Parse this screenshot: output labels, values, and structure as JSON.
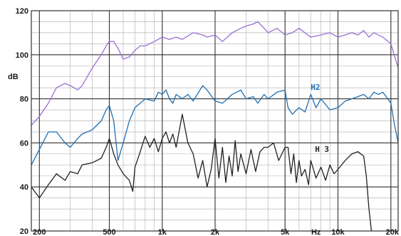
{
  "chart_data": {
    "type": "line",
    "ylabel": "dB",
    "x_scale": "log",
    "xlim": [
      180,
      22000
    ],
    "ylim": [
      20,
      120
    ],
    "y_ticks": [
      20,
      40,
      60,
      80,
      100,
      120
    ],
    "x_ticks": [
      {
        "value": 200,
        "label": "200"
      },
      {
        "value": 500,
        "label": "500"
      },
      {
        "value": 1000,
        "label": "1k"
      },
      {
        "value": 2000,
        "label": "2k"
      },
      {
        "value": 5000,
        "label": "5k"
      },
      {
        "value": 10000,
        "label": "10k"
      },
      {
        "value": 20000,
        "label": "20k"
      }
    ],
    "x_unit_label": {
      "value": 7500,
      "label": "Hz"
    },
    "grid": true,
    "series": [
      {
        "name": "",
        "color": "#9a6fd6",
        "x": [
          180,
          200,
          225,
          250,
          280,
          300,
          330,
          350,
          400,
          450,
          480,
          500,
          530,
          560,
          600,
          650,
          700,
          750,
          800,
          900,
          1000,
          1100,
          1200,
          1300,
          1500,
          1700,
          1800,
          2000,
          2200,
          2500,
          2800,
          3000,
          3300,
          3500,
          3800,
          4000,
          4500,
          5000,
          5500,
          6000,
          7000,
          8000,
          9000,
          10000,
          11000,
          12000,
          13000,
          14000,
          15000,
          16000,
          18000,
          20000,
          22000
        ],
        "y": [
          68,
          72,
          78,
          85,
          87,
          86,
          84,
          86,
          94,
          100,
          104,
          106,
          106,
          103,
          98,
          99,
          102,
          104,
          104,
          106,
          108,
          107,
          108,
          107,
          110,
          109,
          108,
          109,
          106,
          110,
          112,
          113,
          114,
          115,
          112,
          110,
          112,
          109,
          110,
          112,
          108,
          109,
          110,
          108,
          109,
          110,
          109,
          111,
          108,
          110,
          108,
          105,
          94
        ]
      },
      {
        "name": "H2",
        "color": "#1f6fb2",
        "x": [
          180,
          200,
          225,
          250,
          280,
          300,
          330,
          350,
          400,
          450,
          480,
          500,
          530,
          560,
          600,
          650,
          700,
          750,
          800,
          900,
          950,
          1000,
          1050,
          1100,
          1150,
          1200,
          1300,
          1400,
          1500,
          1700,
          1800,
          2000,
          2200,
          2500,
          2800,
          3000,
          3300,
          3500,
          3800,
          4000,
          4500,
          5000,
          5200,
          5500,
          6000,
          6500,
          7000,
          7500,
          8000,
          9000,
          10000,
          11000,
          12000,
          13000,
          14000,
          15000,
          16000,
          17000,
          18000,
          20000,
          21000,
          22000
        ],
        "y": [
          50,
          57,
          65,
          65,
          60,
          58,
          62,
          64,
          66,
          70,
          75,
          77,
          70,
          52,
          60,
          70,
          76,
          78,
          80,
          79,
          83,
          82,
          84,
          80,
          78,
          82,
          80,
          82,
          79,
          86,
          84,
          79,
          78,
          82,
          84,
          80,
          81,
          78,
          82,
          80,
          83,
          84,
          76,
          73,
          76,
          74,
          82,
          76,
          80,
          75,
          76,
          79,
          80,
          81,
          82,
          80,
          83,
          82,
          83,
          78,
          68,
          60
        ]
      },
      {
        "name": "H3",
        "color": "#222222",
        "x": [
          180,
          200,
          225,
          250,
          280,
          300,
          330,
          350,
          400,
          450,
          480,
          500,
          530,
          560,
          600,
          650,
          680,
          700,
          750,
          800,
          850,
          900,
          950,
          1000,
          1050,
          1100,
          1150,
          1200,
          1300,
          1400,
          1500,
          1600,
          1700,
          1800,
          1900,
          2000,
          2100,
          2200,
          2300,
          2400,
          2500,
          2600,
          2700,
          2800,
          3000,
          3200,
          3400,
          3600,
          3800,
          4000,
          4300,
          4600,
          5000,
          5200,
          5400,
          5600,
          5800,
          6000,
          6200,
          6500,
          6800,
          7000,
          7500,
          8000,
          8500,
          9000,
          9500,
          10000,
          11000,
          12000,
          13000,
          14000,
          14500,
          15000,
          15500
        ],
        "y": [
          40,
          35,
          41,
          46,
          43,
          47,
          46,
          50,
          51,
          53,
          58,
          62,
          55,
          50,
          46,
          43,
          38,
          49,
          56,
          63,
          58,
          62,
          56,
          62,
          65,
          60,
          64,
          58,
          73,
          60,
          55,
          44,
          52,
          40,
          48,
          62,
          44,
          58,
          42,
          54,
          45,
          61,
          47,
          55,
          46,
          57,
          47,
          56,
          58,
          58,
          60,
          52,
          58,
          58,
          46,
          55,
          42,
          52,
          45,
          48,
          41,
          52,
          44,
          49,
          43,
          50,
          46,
          48,
          52,
          55,
          56,
          54,
          45,
          30,
          20
        ]
      }
    ],
    "series_labels": [
      {
        "text": "H2",
        "x": 7000,
        "y": 84,
        "color": "#1f6fb2"
      },
      {
        "text": "H 3",
        "x": 7400,
        "y": 56,
        "color": "#222222"
      }
    ]
  }
}
